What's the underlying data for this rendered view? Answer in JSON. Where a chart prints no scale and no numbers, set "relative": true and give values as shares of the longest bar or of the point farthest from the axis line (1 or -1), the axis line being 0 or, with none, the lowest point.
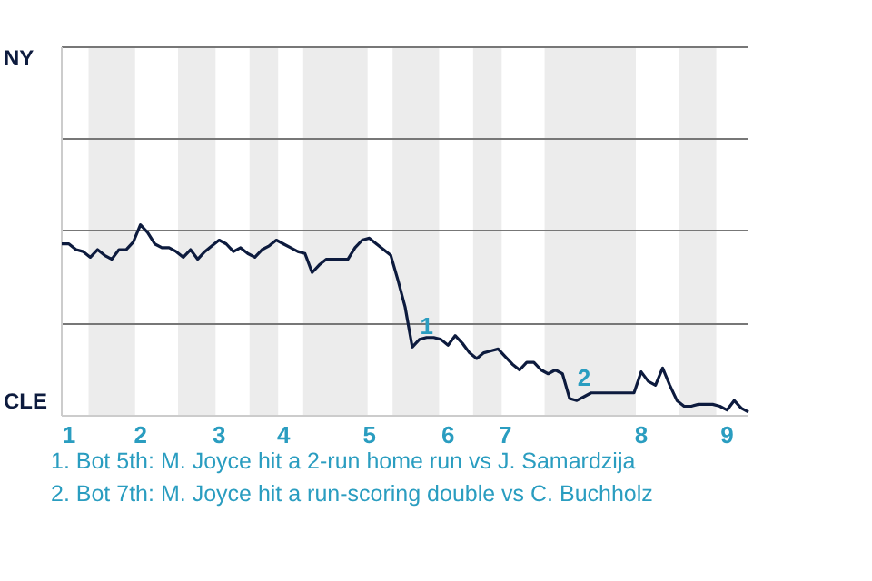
{
  "chart_data": {
    "type": "line",
    "categories": [
      null,
      "1",
      null,
      null,
      null,
      null,
      null,
      null,
      null,
      null,
      null,
      "2",
      null,
      null,
      null,
      null,
      null,
      null,
      null,
      null,
      null,
      null,
      "3",
      null,
      null,
      null,
      null,
      null,
      null,
      null,
      null,
      "4",
      null,
      null,
      null,
      null,
      null,
      null,
      null,
      null,
      null,
      null,
      null,
      "5",
      null,
      null,
      null,
      null,
      null,
      null,
      null,
      null,
      null,
      null,
      "6",
      null,
      null,
      null,
      null,
      null,
      null,
      null,
      "7",
      null,
      null,
      null,
      null,
      null,
      null,
      null,
      null,
      null,
      null,
      null,
      null,
      null,
      null,
      null,
      null,
      null,
      null,
      "8",
      null,
      null,
      null,
      null,
      null,
      null,
      null,
      null,
      null,
      null,
      null,
      "9",
      null,
      null,
      null
    ],
    "series": [
      {
        "color": "#0d1b3e",
        "values": [
          0.9,
          0.9,
          0.87,
          0.86,
          0.83,
          0.87,
          0.84,
          0.82,
          0.87,
          0.87,
          0.91,
          1,
          0.96,
          0.9,
          0.88,
          0.88,
          0.86,
          0.83,
          0.87,
          0.82,
          0.86,
          0.89,
          0.92,
          0.9,
          0.86,
          0.88,
          0.85,
          0.83,
          0.87,
          0.89,
          0.92,
          0.9,
          0.88,
          0.86,
          0.85,
          0.75,
          0.79,
          0.82,
          0.82,
          0.82,
          0.82,
          0.88,
          0.92,
          0.93,
          0.9,
          0.87,
          0.84,
          0.71,
          0.57,
          0.36,
          0.4,
          0.41,
          0.41,
          0.4,
          0.37,
          0.42,
          0.38,
          0.33,
          0.3,
          0.33,
          0.34,
          0.35,
          0.31,
          0.27,
          0.24,
          0.28,
          0.28,
          0.24,
          0.22,
          0.24,
          0.22,
          0.09,
          0.08,
          0.1,
          0.12,
          0.12,
          0.12,
          0.12,
          0.12,
          0.12,
          0.12,
          0.23,
          0.18,
          0.16,
          0.25,
          0.16,
          0.08,
          0.05,
          0.05,
          0.06,
          0.06,
          0.06,
          0.05,
          0.03,
          0.08,
          0.04,
          0.02
        ]
      }
    ],
    "relative": true,
    "marker": "none",
    "ref_lines": [
      {
        "axis": "y",
        "value": 0.48,
        "color": "#777777"
      },
      {
        "axis": "y",
        "value": 0.97,
        "color": "#777777"
      },
      {
        "axis": "y",
        "value": 1.45,
        "color": "#777777"
      }
    ],
    "line_style": "solid",
    "annotations": [
      "NY",
      "CLE",
      {
        "text": "1",
        "y": 0.36
      },
      {
        "text": "2",
        "y": 0.09
      },
      "1. Bot 5th: M. Joyce hit a 2-run home run vs J. Samardzija",
      "2. Bot 7th: M. Joyce hit a run-scoring double vs C. Buchholz"
    ]
  }
}
